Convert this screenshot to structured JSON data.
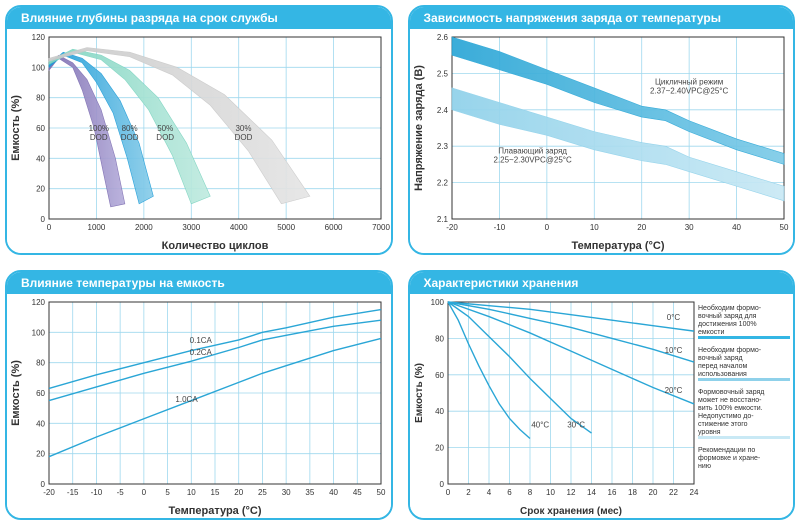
{
  "panel_border": "#34b6e4",
  "panel_title_bg": "#34b6e4",
  "grid_color": "#9fd8ee",
  "axis_color": "#333333",
  "chart1": {
    "title": "Влияние глубины разряда на срок службы",
    "type": "line-band",
    "xlabel": "Количество циклов",
    "ylabel": "Емкость (%)",
    "xlim": [
      0,
      7000
    ],
    "ylim": [
      0,
      120
    ],
    "xticks": [
      0,
      1000,
      2000,
      3000,
      4000,
      5000,
      6000,
      7000
    ],
    "yticks": [
      0,
      20,
      40,
      60,
      80,
      100,
      120
    ],
    "series": [
      {
        "label": "100%\nDOD",
        "fill1": "#7b6bb0",
        "fill2": "#b6aedb",
        "top": [
          [
            0,
            100
          ],
          [
            200,
            108
          ],
          [
            500,
            103
          ],
          [
            800,
            92
          ],
          [
            1100,
            72
          ],
          [
            1400,
            40
          ],
          [
            1600,
            10
          ]
        ],
        "bottom": [
          [
            0,
            98
          ],
          [
            200,
            106
          ],
          [
            500,
            100
          ],
          [
            700,
            85
          ],
          [
            950,
            60
          ],
          [
            1150,
            30
          ],
          [
            1300,
            8
          ]
        ],
        "label_xy": [
          1050,
          58
        ]
      },
      {
        "label": "80%\nDOD",
        "fill1": "#1a9bd7",
        "fill2": "#8acdea",
        "top": [
          [
            0,
            102
          ],
          [
            300,
            110
          ],
          [
            700,
            106
          ],
          [
            1100,
            96
          ],
          [
            1500,
            78
          ],
          [
            1900,
            50
          ],
          [
            2200,
            15
          ]
        ],
        "bottom": [
          [
            0,
            100
          ],
          [
            300,
            108
          ],
          [
            700,
            103
          ],
          [
            1000,
            90
          ],
          [
            1350,
            70
          ],
          [
            1650,
            40
          ],
          [
            1900,
            10
          ]
        ],
        "label_xy": [
          1700,
          58
        ]
      },
      {
        "label": "50%\nDOD",
        "fill1": "#7dd4c0",
        "fill2": "#c0ebe0",
        "top": [
          [
            0,
            104
          ],
          [
            500,
            112
          ],
          [
            1100,
            108
          ],
          [
            1700,
            98
          ],
          [
            2300,
            80
          ],
          [
            2900,
            50
          ],
          [
            3400,
            15
          ]
        ],
        "bottom": [
          [
            0,
            102
          ],
          [
            500,
            110
          ],
          [
            1100,
            105
          ],
          [
            1600,
            92
          ],
          [
            2100,
            72
          ],
          [
            2600,
            42
          ],
          [
            3000,
            10
          ]
        ],
        "label_xy": [
          2450,
          58
        ]
      },
      {
        "label": "30%\nDOD",
        "fill1": "#c9c9c9",
        "fill2": "#e5e5e5",
        "top": [
          [
            0,
            106
          ],
          [
            800,
            113
          ],
          [
            1700,
            110
          ],
          [
            2700,
            100
          ],
          [
            3700,
            82
          ],
          [
            4700,
            52
          ],
          [
            5500,
            15
          ]
        ],
        "bottom": [
          [
            0,
            104
          ],
          [
            800,
            111
          ],
          [
            1700,
            107
          ],
          [
            2600,
            95
          ],
          [
            3400,
            75
          ],
          [
            4200,
            45
          ],
          [
            4900,
            10
          ]
        ],
        "label_xy": [
          4100,
          58
        ]
      }
    ]
  },
  "chart2": {
    "title": "Зависимость напряжения заряда от температуры",
    "type": "line-band",
    "xlabel": "Температура (°C)",
    "ylabel": "Напряжение заряда (В)",
    "xlim": [
      -20,
      50
    ],
    "ylim": [
      2.1,
      2.6
    ],
    "xticks": [
      -20,
      -10,
      0,
      10,
      20,
      30,
      40,
      50
    ],
    "yticks": [
      2.1,
      2.2,
      2.3,
      2.4,
      2.5,
      2.6
    ],
    "series": [
      {
        "label": "Цикличный режим\n2.37~2.40VPC@25°C",
        "fill1": "#2aa6d6",
        "fill2": "#7ecbe8",
        "top": [
          [
            -20,
            2.6
          ],
          [
            -10,
            2.56
          ],
          [
            0,
            2.51
          ],
          [
            10,
            2.46
          ],
          [
            20,
            2.41
          ],
          [
            25,
            2.4
          ],
          [
            30,
            2.37
          ],
          [
            40,
            2.32
          ],
          [
            50,
            2.28
          ]
        ],
        "bottom": [
          [
            -20,
            2.55
          ],
          [
            -10,
            2.51
          ],
          [
            0,
            2.47
          ],
          [
            10,
            2.42
          ],
          [
            20,
            2.38
          ],
          [
            25,
            2.37
          ],
          [
            30,
            2.34
          ],
          [
            40,
            2.29
          ],
          [
            50,
            2.25
          ]
        ],
        "label_xy": [
          30,
          2.47
        ]
      },
      {
        "label": "Плавающий заряд\n2.25~2.30VPC@25°C",
        "fill1": "#8fd1ea",
        "fill2": "#c9e9f5",
        "top": [
          [
            -20,
            2.46
          ],
          [
            -10,
            2.42
          ],
          [
            0,
            2.38
          ],
          [
            10,
            2.34
          ],
          [
            20,
            2.31
          ],
          [
            25,
            2.3
          ],
          [
            30,
            2.27
          ],
          [
            40,
            2.23
          ],
          [
            50,
            2.19
          ]
        ],
        "bottom": [
          [
            -20,
            2.4
          ],
          [
            -10,
            2.36
          ],
          [
            0,
            2.33
          ],
          [
            10,
            2.29
          ],
          [
            20,
            2.26
          ],
          [
            25,
            2.25
          ],
          [
            30,
            2.23
          ],
          [
            40,
            2.19
          ],
          [
            50,
            2.15
          ]
        ],
        "label_xy": [
          -3,
          2.28
        ]
      }
    ]
  },
  "chart3": {
    "title": "Влияние температуры на емкость",
    "type": "line",
    "xlabel": "Температура (°C)",
    "ylabel": "Емкость (%)",
    "xlim": [
      -20,
      50
    ],
    "ylim": [
      0,
      120
    ],
    "xticks": [
      -20,
      -15,
      -10,
      -5,
      0,
      5,
      10,
      15,
      20,
      25,
      30,
      35,
      40,
      45,
      50
    ],
    "yticks": [
      0,
      20,
      40,
      60,
      80,
      100,
      120
    ],
    "line_color": "#2aa6d6",
    "series": [
      {
        "label": "0.1CA",
        "pts": [
          [
            -20,
            63
          ],
          [
            -10,
            72
          ],
          [
            0,
            80
          ],
          [
            10,
            88
          ],
          [
            20,
            95
          ],
          [
            25,
            100
          ],
          [
            30,
            103
          ],
          [
            40,
            110
          ],
          [
            50,
            115
          ]
        ],
        "label_xy": [
          12,
          93
        ]
      },
      {
        "label": "0.2CA",
        "pts": [
          [
            -20,
            55
          ],
          [
            -10,
            64
          ],
          [
            0,
            73
          ],
          [
            10,
            81
          ],
          [
            20,
            90
          ],
          [
            25,
            95
          ],
          [
            30,
            98
          ],
          [
            40,
            104
          ],
          [
            50,
            108
          ]
        ],
        "label_xy": [
          12,
          85
        ]
      },
      {
        "label": "1.0CA",
        "pts": [
          [
            -20,
            18
          ],
          [
            -10,
            31
          ],
          [
            0,
            43
          ],
          [
            10,
            55
          ],
          [
            20,
            67
          ],
          [
            25,
            73
          ],
          [
            30,
            78
          ],
          [
            40,
            88
          ],
          [
            50,
            96
          ]
        ],
        "label_xy": [
          9,
          54
        ]
      }
    ]
  },
  "chart4": {
    "title": "Характеристики хранения",
    "type": "line",
    "xlabel": "Срок хранения (мес)",
    "ylabel": "Емкость (%)",
    "xlim": [
      0,
      24
    ],
    "ylim": [
      0,
      100
    ],
    "xticks": [
      0,
      2,
      4,
      6,
      8,
      10,
      12,
      14,
      16,
      18,
      20,
      22,
      24
    ],
    "yticks": [
      0,
      20,
      40,
      60,
      80,
      100
    ],
    "line_color": "#2aa6d6",
    "series": [
      {
        "label": "0°C",
        "pts": [
          [
            0,
            100
          ],
          [
            4,
            98
          ],
          [
            8,
            96
          ],
          [
            12,
            93
          ],
          [
            16,
            90
          ],
          [
            20,
            87
          ],
          [
            24,
            84
          ]
        ],
        "label_xy": [
          22,
          90
        ]
      },
      {
        "label": "10°C",
        "pts": [
          [
            0,
            100
          ],
          [
            4,
            96
          ],
          [
            8,
            91
          ],
          [
            12,
            86
          ],
          [
            16,
            80
          ],
          [
            20,
            74
          ],
          [
            24,
            67
          ]
        ],
        "label_xy": [
          22,
          72
        ]
      },
      {
        "label": "20°C",
        "pts": [
          [
            0,
            100
          ],
          [
            4,
            92
          ],
          [
            8,
            83
          ],
          [
            12,
            73
          ],
          [
            16,
            63
          ],
          [
            20,
            53
          ],
          [
            24,
            44
          ]
        ],
        "label_xy": [
          22,
          50
        ]
      },
      {
        "label": "30°C",
        "pts": [
          [
            0,
            100
          ],
          [
            2,
            92
          ],
          [
            4,
            81
          ],
          [
            6,
            70
          ],
          [
            8,
            58
          ],
          [
            10,
            47
          ],
          [
            12,
            36
          ],
          [
            14,
            28
          ]
        ],
        "label_xy": [
          12.5,
          31
        ]
      },
      {
        "label": "40°C",
        "pts": [
          [
            0,
            100
          ],
          [
            1,
            90
          ],
          [
            2,
            77
          ],
          [
            3,
            65
          ],
          [
            4,
            54
          ],
          [
            5,
            44
          ],
          [
            6,
            36
          ],
          [
            7,
            30
          ],
          [
            8,
            25
          ]
        ],
        "label_xy": [
          9,
          31
        ]
      }
    ],
    "legend": [
      {
        "color": "#34b6e4",
        "text": "Необходим формо-\nвочный заряд для\nдостижения 100%\nемкости"
      },
      {
        "color": "#8fd1ea",
        "text": "Необходим формо-\nвочный заряд\nперед началом\nиспользования"
      },
      {
        "color": "#c9e9f5",
        "text": "Формовочный заряд\nможет не восстано-\nвить 100% емкости.\nНедопустимо до-\nстижение этого\nуровня"
      },
      {
        "color": null,
        "text": "Рекомендации по\nформовке и хране-\nнию"
      }
    ]
  }
}
